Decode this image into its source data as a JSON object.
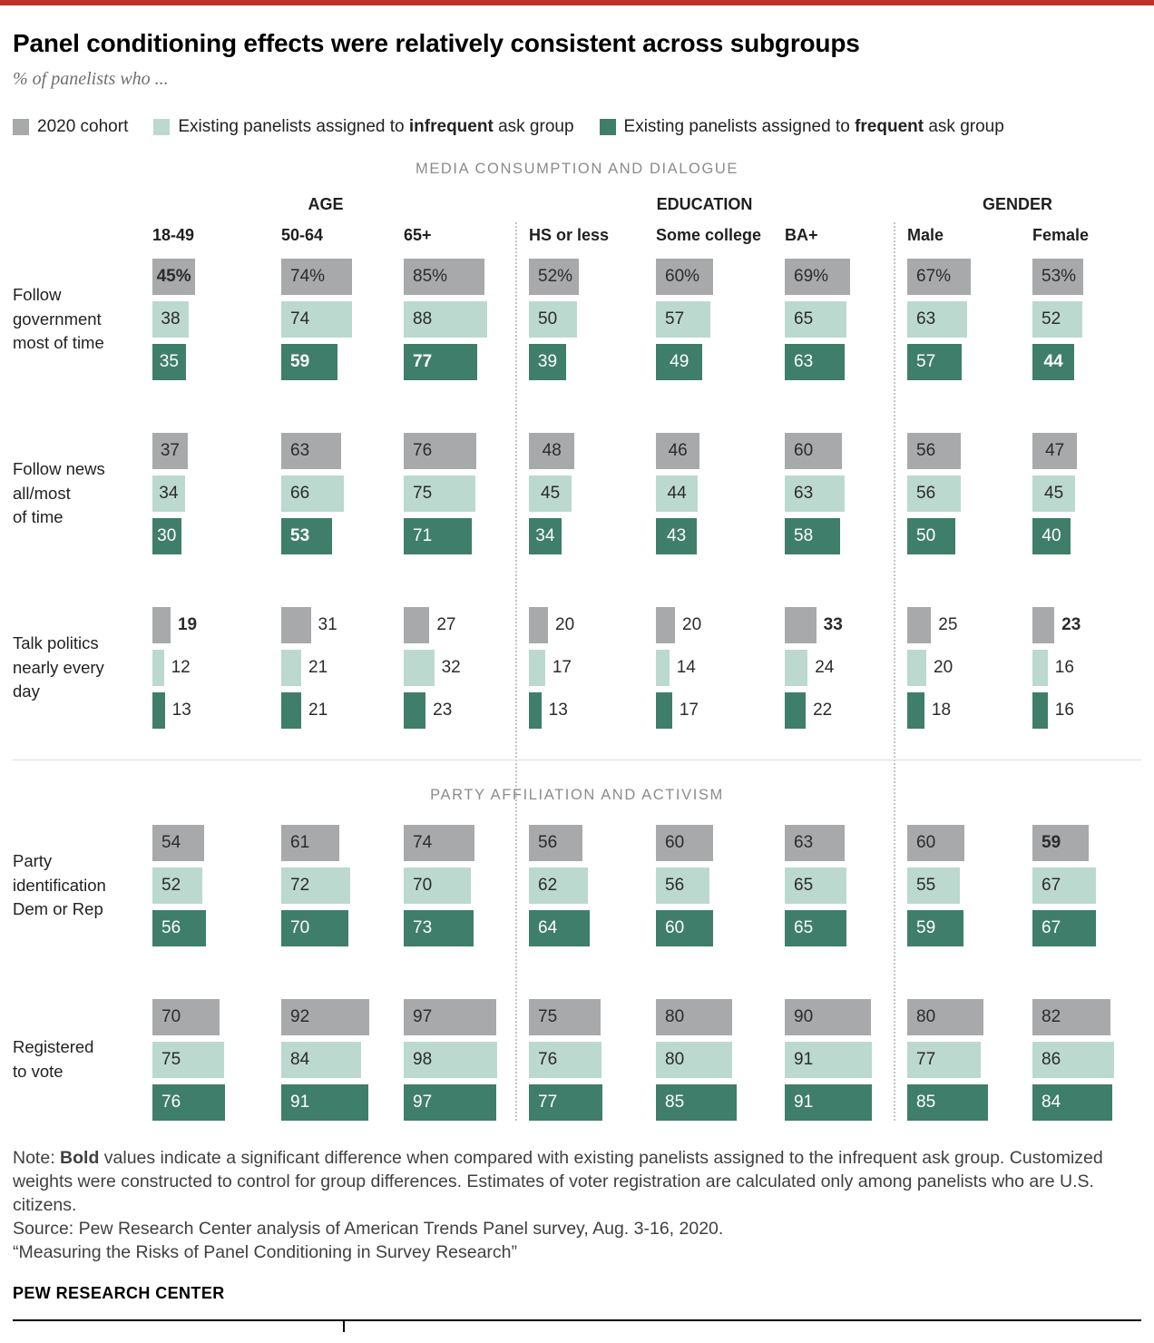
{
  "header": {
    "title": "Panel conditioning effects were relatively consistent across subgroups",
    "subtitle": "% of panelists who ..."
  },
  "colors": {
    "accent_red": "#bf3127",
    "gray": "#a8a9aa",
    "light_teal": "#bcd9cf",
    "dark_teal": "#3f7e6a",
    "divider": "#dcdcdc",
    "dotted_separator": "#c4c4c4"
  },
  "legend": {
    "items": [
      {
        "color_key": "gray",
        "prefix": "2020 cohort",
        "bold": "",
        "suffix": ""
      },
      {
        "color_key": "light_teal",
        "prefix": "Existing panelists assigned to ",
        "bold": "infrequent",
        "suffix": " ask group"
      },
      {
        "color_key": "dark_teal",
        "prefix": "Existing panelists assigned to ",
        "bold": "frequent",
        "suffix": " ask group"
      }
    ]
  },
  "chart_data": {
    "type": "bar",
    "unit": "%",
    "axis_max": 100,
    "legend_position": "top",
    "series": [
      "2020 cohort",
      "Existing panelists assigned to infrequent ask group",
      "Existing panelists assigned to frequent ask group"
    ],
    "groups": [
      {
        "label": "AGE",
        "columns": [
          "18-49",
          "50-64",
          "65+"
        ]
      },
      {
        "label": "EDUCATION",
        "columns": [
          "HS or less",
          "Some college",
          "BA+"
        ]
      },
      {
        "label": "GENDER",
        "columns": [
          "Male",
          "Female"
        ]
      }
    ],
    "sections": [
      {
        "title": "MEDIA CONSUMPTION AND DIALOGUE",
        "rows": [
          {
            "label": "Follow\ngovernment\nmost of time",
            "labels_outside": false,
            "cells": [
              [
                [
                  45,
                  "45%",
                  1
                ],
                [
                  38,
                  "38",
                  0
                ],
                [
                  35,
                  "35",
                  0
                ]
              ],
              [
                [
                  74,
                  "74%",
                  0
                ],
                [
                  74,
                  "74",
                  0
                ],
                [
                  59,
                  "59",
                  1
                ]
              ],
              [
                [
                  85,
                  "85%",
                  0
                ],
                [
                  88,
                  "88",
                  0
                ],
                [
                  77,
                  "77",
                  1
                ]
              ],
              [
                [
                  52,
                  "52%",
                  0
                ],
                [
                  50,
                  "50",
                  0
                ],
                [
                  39,
                  "39",
                  0
                ]
              ],
              [
                [
                  60,
                  "60%",
                  0
                ],
                [
                  57,
                  "57",
                  0
                ],
                [
                  49,
                  "49",
                  0
                ]
              ],
              [
                [
                  69,
                  "69%",
                  0
                ],
                [
                  65,
                  "65",
                  0
                ],
                [
                  63,
                  "63",
                  0
                ]
              ],
              [
                [
                  67,
                  "67%",
                  0
                ],
                [
                  63,
                  "63",
                  0
                ],
                [
                  57,
                  "57",
                  0
                ]
              ],
              [
                [
                  53,
                  "53%",
                  0
                ],
                [
                  52,
                  "52",
                  0
                ],
                [
                  44,
                  "44",
                  1
                ]
              ]
            ]
          },
          {
            "label": "Follow news\nall/most\nof time",
            "labels_outside": false,
            "cells": [
              [
                [
                  37,
                  "37",
                  0
                ],
                [
                  34,
                  "34",
                  0
                ],
                [
                  30,
                  "30",
                  0
                ]
              ],
              [
                [
                  63,
                  "63",
                  0
                ],
                [
                  66,
                  "66",
                  0
                ],
                [
                  53,
                  "53",
                  1
                ]
              ],
              [
                [
                  76,
                  "76",
                  0
                ],
                [
                  75,
                  "75",
                  0
                ],
                [
                  71,
                  "71",
                  0
                ]
              ],
              [
                [
                  48,
                  "48",
                  0
                ],
                [
                  45,
                  "45",
                  0
                ],
                [
                  34,
                  "34",
                  0
                ]
              ],
              [
                [
                  46,
                  "46",
                  0
                ],
                [
                  44,
                  "44",
                  0
                ],
                [
                  43,
                  "43",
                  0
                ]
              ],
              [
                [
                  60,
                  "60",
                  0
                ],
                [
                  63,
                  "63",
                  0
                ],
                [
                  58,
                  "58",
                  0
                ]
              ],
              [
                [
                  56,
                  "56",
                  0
                ],
                [
                  56,
                  "56",
                  0
                ],
                [
                  50,
                  "50",
                  0
                ]
              ],
              [
                [
                  47,
                  "47",
                  0
                ],
                [
                  45,
                  "45",
                  0
                ],
                [
                  40,
                  "40",
                  0
                ]
              ]
            ]
          },
          {
            "label": "Talk politics\nnearly every\nday",
            "labels_outside": true,
            "cells": [
              [
                [
                  19,
                  "19",
                  1
                ],
                [
                  12,
                  "12",
                  0
                ],
                [
                  13,
                  "13",
                  0
                ]
              ],
              [
                [
                  31,
                  "31",
                  0
                ],
                [
                  21,
                  "21",
                  0
                ],
                [
                  21,
                  "21",
                  0
                ]
              ],
              [
                [
                  27,
                  "27",
                  0
                ],
                [
                  32,
                  "32",
                  0
                ],
                [
                  23,
                  "23",
                  0
                ]
              ],
              [
                [
                  20,
                  "20",
                  0
                ],
                [
                  17,
                  "17",
                  0
                ],
                [
                  13,
                  "13",
                  0
                ]
              ],
              [
                [
                  20,
                  "20",
                  0
                ],
                [
                  14,
                  "14",
                  0
                ],
                [
                  17,
                  "17",
                  0
                ]
              ],
              [
                [
                  33,
                  "33",
                  1
                ],
                [
                  24,
                  "24",
                  0
                ],
                [
                  22,
                  "22",
                  0
                ]
              ],
              [
                [
                  25,
                  "25",
                  0
                ],
                [
                  20,
                  "20",
                  0
                ],
                [
                  18,
                  "18",
                  0
                ]
              ],
              [
                [
                  23,
                  "23",
                  1
                ],
                [
                  16,
                  "16",
                  0
                ],
                [
                  16,
                  "16",
                  0
                ]
              ]
            ]
          }
        ]
      },
      {
        "title": "PARTY AFFILIATION AND ACTIVISM",
        "rows": [
          {
            "label": "Party\nidentification\nDem or Rep",
            "labels_outside": false,
            "cells": [
              [
                [
                  54,
                  "54",
                  0
                ],
                [
                  52,
                  "52",
                  0
                ],
                [
                  56,
                  "56",
                  0
                ]
              ],
              [
                [
                  61,
                  "61",
                  0
                ],
                [
                  72,
                  "72",
                  0
                ],
                [
                  70,
                  "70",
                  0
                ]
              ],
              [
                [
                  74,
                  "74",
                  0
                ],
                [
                  70,
                  "70",
                  0
                ],
                [
                  73,
                  "73",
                  0
                ]
              ],
              [
                [
                  56,
                  "56",
                  0
                ],
                [
                  62,
                  "62",
                  0
                ],
                [
                  64,
                  "64",
                  0
                ]
              ],
              [
                [
                  60,
                  "60",
                  0
                ],
                [
                  56,
                  "56",
                  0
                ],
                [
                  60,
                  "60",
                  0
                ]
              ],
              [
                [
                  63,
                  "63",
                  0
                ],
                [
                  65,
                  "65",
                  0
                ],
                [
                  65,
                  "65",
                  0
                ]
              ],
              [
                [
                  60,
                  "60",
                  0
                ],
                [
                  55,
                  "55",
                  0
                ],
                [
                  59,
                  "59",
                  0
                ]
              ],
              [
                [
                  59,
                  "59",
                  1
                ],
                [
                  67,
                  "67",
                  0
                ],
                [
                  67,
                  "67",
                  0
                ]
              ]
            ]
          },
          {
            "label": "Registered\nto vote",
            "labels_outside": false,
            "cells": [
              [
                [
                  70,
                  "70",
                  0
                ],
                [
                  75,
                  "75",
                  0
                ],
                [
                  76,
                  "76",
                  0
                ]
              ],
              [
                [
                  92,
                  "92",
                  0
                ],
                [
                  84,
                  "84",
                  0
                ],
                [
                  91,
                  "91",
                  0
                ]
              ],
              [
                [
                  97,
                  "97",
                  0
                ],
                [
                  98,
                  "98",
                  0
                ],
                [
                  97,
                  "97",
                  0
                ]
              ],
              [
                [
                  75,
                  "75",
                  0
                ],
                [
                  76,
                  "76",
                  0
                ],
                [
                  77,
                  "77",
                  0
                ]
              ],
              [
                [
                  80,
                  "80",
                  0
                ],
                [
                  80,
                  "80",
                  0
                ],
                [
                  85,
                  "85",
                  0
                ]
              ],
              [
                [
                  90,
                  "90",
                  0
                ],
                [
                  91,
                  "91",
                  0
                ],
                [
                  91,
                  "91",
                  0
                ]
              ],
              [
                [
                  80,
                  "80",
                  0
                ],
                [
                  77,
                  "77",
                  0
                ],
                [
                  85,
                  "85",
                  0
                ]
              ],
              [
                [
                  82,
                  "82",
                  0
                ],
                [
                  86,
                  "86",
                  0
                ],
                [
                  84,
                  "84",
                  0
                ]
              ]
            ]
          }
        ]
      }
    ]
  },
  "notes": {
    "note_prefix": "Note: ",
    "note_bold": "Bold",
    "note_body": " values indicate a significant difference when compared with existing panelists assigned to the infrequent ask group. Customized weights were constructed to control for group differences. Estimates of voter registration are calculated only among panelists who are U.S. citizens.",
    "source": "Source: Pew Research Center analysis of American Trends Panel survey, Aug. 3-16, 2020.",
    "report": "“Measuring the Risks of Panel Conditioning in Survey Research”"
  },
  "footer": {
    "brand": "PEW RESEARCH CENTER"
  }
}
